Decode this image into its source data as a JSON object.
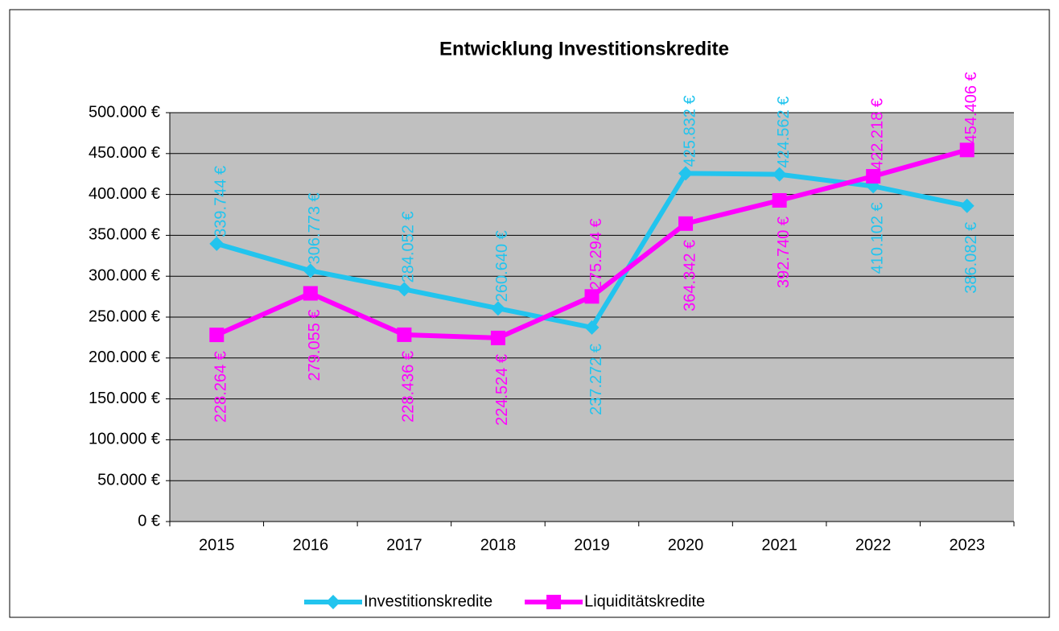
{
  "chart_data": {
    "type": "line",
    "title": "Entwicklung Investitionskredite",
    "categories": [
      "2015",
      "2016",
      "2017",
      "2018",
      "2019",
      "2020",
      "2021",
      "2022",
      "2023"
    ],
    "series": [
      {
        "name": "Investitionskredite",
        "color": "#22c4ee",
        "values": [
          339744,
          306773,
          284052,
          260640,
          237272,
          425832,
          424562,
          410102,
          386082
        ],
        "value_labels": [
          "339.744 €",
          "306.773 €",
          "284.052 €",
          "260.640 €",
          "237.272 €",
          "425.832 €",
          "424.562 €",
          "410.102 €",
          "386.082 €"
        ]
      },
      {
        "name": "Liquiditätskredite",
        "color": "#ff00ff",
        "values": [
          228264,
          279055,
          228436,
          224524,
          275294,
          364342,
          392740,
          422218,
          454406
        ],
        "value_labels": [
          "228.264 €",
          "279.055 €",
          "228.436 €",
          "224.524 €",
          "275.294 €",
          "364.342 €",
          "392.740 €",
          "422.218 €",
          "454.406 €"
        ]
      }
    ],
    "ylim": [
      0,
      500000
    ],
    "yticks": [
      {
        "value": 0,
        "label": "0 €"
      },
      {
        "value": 50000,
        "label": "50.000 €"
      },
      {
        "value": 100000,
        "label": "100.000 €"
      },
      {
        "value": 150000,
        "label": "150.000 €"
      },
      {
        "value": 200000,
        "label": "200.000 €"
      },
      {
        "value": 250000,
        "label": "250.000 €"
      },
      {
        "value": 300000,
        "label": "300.000 €"
      },
      {
        "value": 350000,
        "label": "350.000 €"
      },
      {
        "value": 400000,
        "label": "400.000 €"
      },
      {
        "value": 450000,
        "label": "450.000 €"
      },
      {
        "value": 500000,
        "label": "500.000 €"
      }
    ],
    "grid": true,
    "legend": "bottom"
  }
}
